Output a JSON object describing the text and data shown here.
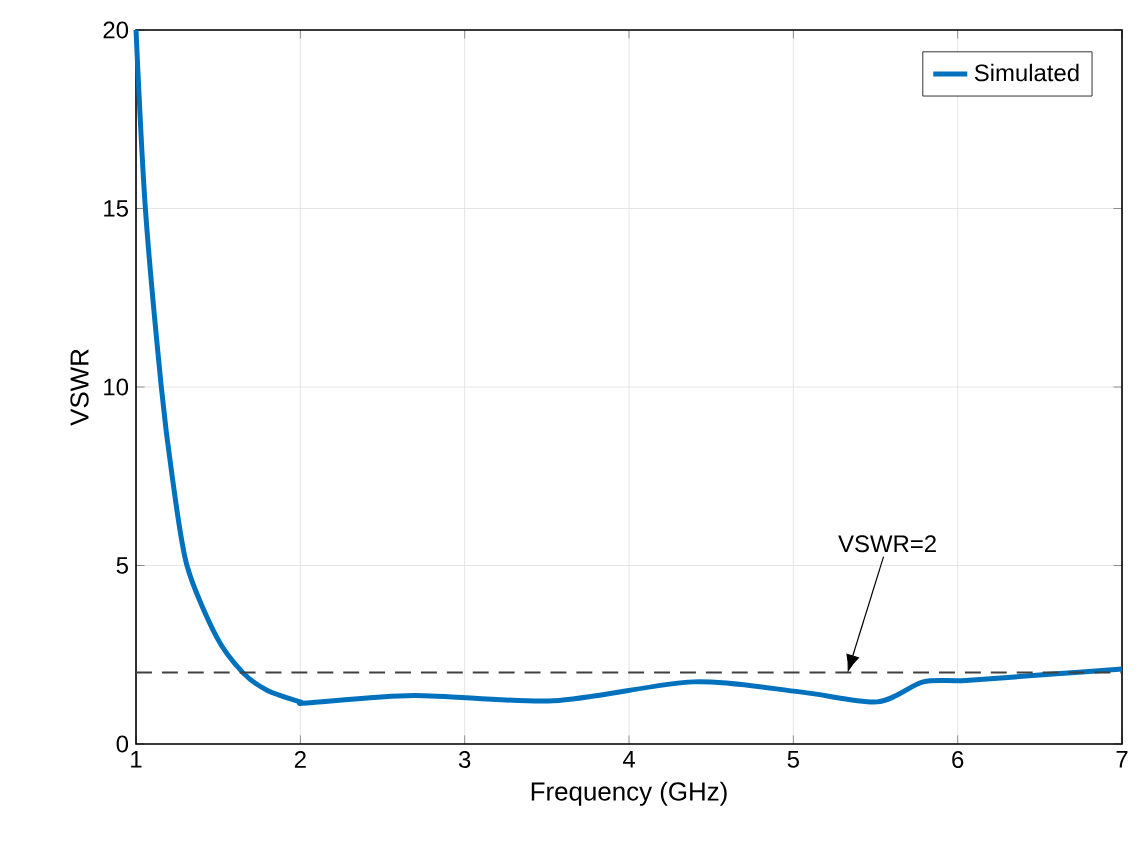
{
  "chart_data": {
    "type": "line",
    "xlabel": "Frequency (GHz)",
    "ylabel": "VSWR",
    "x": [
      1.0,
      1.057,
      1.154,
      1.22,
      1.31,
      1.49,
      1.65,
      1.8,
      2.0,
      2.04,
      2.69,
      3.54,
      4.39,
      5.04,
      5.51,
      5.79,
      6.05,
      6.58,
      7.0
    ],
    "series": [
      {
        "name": "Simulated",
        "color": "#0072bd",
        "values": [
          20,
          15,
          10,
          7.5,
          5,
          3,
          2,
          1.5,
          1.18,
          1.15,
          1.36,
          1.21,
          1.74,
          1.46,
          1.18,
          1.74,
          1.78,
          1.96,
          2.1
        ]
      }
    ],
    "xlim": [
      1,
      7
    ],
    "ylim": [
      0,
      20
    ],
    "xticks": [
      1,
      2,
      3,
      4,
      5,
      6,
      7
    ],
    "yticks": [
      0,
      5,
      10,
      15,
      20
    ],
    "grid": true,
    "legend": "top right",
    "marker": "none",
    "line_style": "solid",
    "ref_lines": [
      {
        "axis": "y",
        "value": 2,
        "color": "#404040",
        "line_style": "dashed"
      }
    ],
    "annotations": [
      {
        "text": "VSWR=2",
        "x": 5.33,
        "y": 2
      }
    ]
  }
}
